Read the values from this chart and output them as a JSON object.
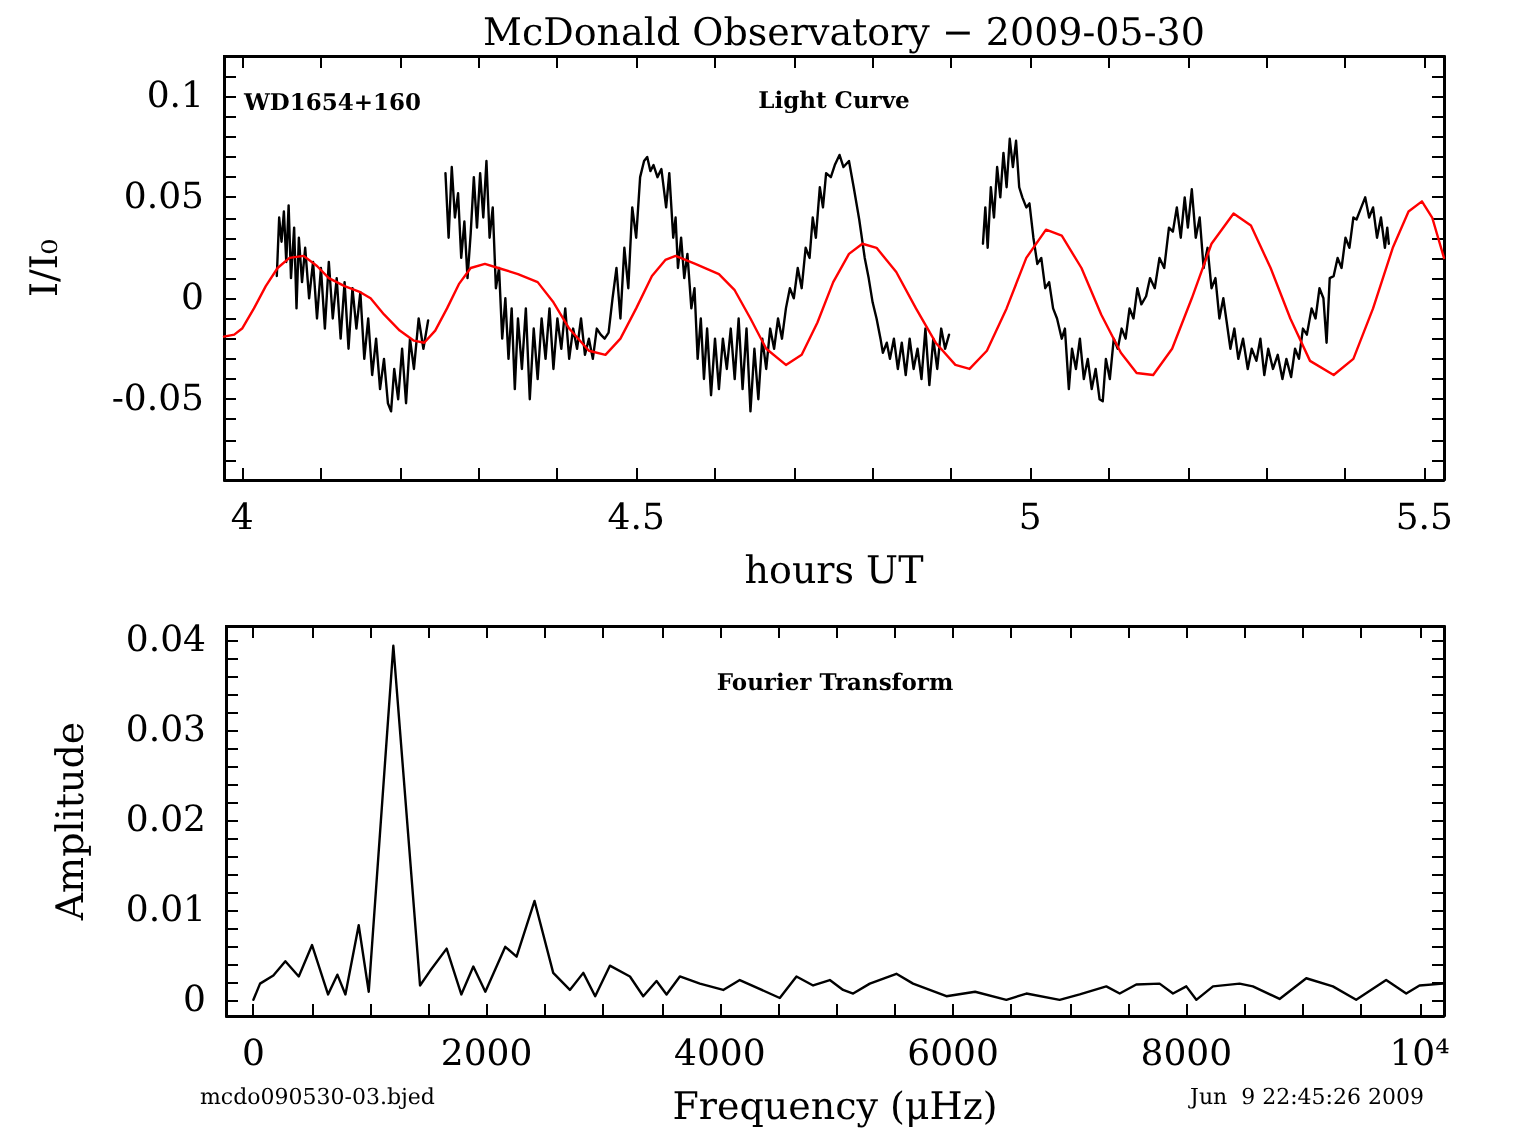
{
  "chart_data": [
    {
      "type": "line",
      "title": "McDonald Observatory − 2009-05-30",
      "xlabel": "hours UT",
      "ylabel": "I/I₀",
      "annotations": [
        "WD1654+160",
        "Light Curve"
      ],
      "marker": "none",
      "line_style": "solid",
      "xlim": [
        3.977,
        5.525
      ],
      "ylim": [
        -0.09,
        0.12
      ],
      "xticks": [
        4,
        {
          "value": 4.1,
          "label": null
        },
        {
          "value": 4.2,
          "label": null
        },
        {
          "value": 4.3,
          "label": null
        },
        {
          "value": 4.4,
          "label": null
        },
        4.5,
        {
          "value": 4.6,
          "label": null
        },
        {
          "value": 4.7,
          "label": null
        },
        {
          "value": 4.8,
          "label": null
        },
        {
          "value": 4.9,
          "label": null
        },
        5,
        {
          "value": 5.1,
          "label": null
        },
        {
          "value": 5.2,
          "label": null
        },
        {
          "value": 5.3,
          "label": null
        },
        {
          "value": 5.4,
          "label": null
        },
        5.5
      ],
      "yticks": [
        {
          "value": -0.08,
          "label": null
        },
        {
          "value": -0.07,
          "label": null
        },
        {
          "value": -0.06,
          "label": null
        },
        -0.05,
        {
          "value": -0.04,
          "label": null
        },
        {
          "value": -0.03,
          "label": null
        },
        {
          "value": -0.02,
          "label": null
        },
        {
          "value": -0.01,
          "label": null
        },
        0,
        {
          "value": 0.01,
          "label": null
        },
        {
          "value": 0.02,
          "label": null
        },
        {
          "value": 0.03,
          "label": null
        },
        {
          "value": 0.04,
          "label": null
        },
        0.05,
        {
          "value": 0.06,
          "label": null
        },
        {
          "value": 0.07,
          "label": null
        },
        {
          "value": 0.08,
          "label": null
        },
        {
          "value": 0.09,
          "label": null
        },
        0.1,
        {
          "value": 0.11,
          "label": null
        }
      ],
      "series": [
        {
          "color": "#000000",
          "x": [
            4.044,
            4.047,
            4.05,
            4.053,
            4.056,
            4.059,
            4.062,
            4.066,
            4.069,
            4.072,
            4.076,
            4.08,
            4.085,
            4.09,
            4.095,
            4.1,
            4.105,
            4.11,
            4.115,
            4.12,
            4.125,
            4.13,
            4.135,
            4.14,
            4.145,
            4.15,
            4.155,
            4.16,
            4.165,
            4.17,
            4.175,
            4.18,
            4.185,
            4.189,
            4.193,
            4.198,
            4.203,
            4.208,
            4.213,
            4.218,
            4.224,
            4.23,
            4.236,
            4.247,
            4.258,
            4.262,
            4.266,
            4.27,
            4.274,
            4.278,
            4.282,
            4.286,
            4.29,
            4.294,
            4.298,
            4.302,
            4.306,
            4.31,
            4.314,
            4.318,
            4.322,
            4.326,
            4.33,
            4.334,
            4.338,
            4.342,
            4.346,
            4.35,
            4.355,
            4.36,
            4.365,
            4.37,
            4.375,
            4.38,
            4.385,
            4.39,
            4.395,
            4.4,
            4.405,
            4.41,
            4.415,
            4.42,
            4.425,
            4.43,
            4.435,
            4.44,
            4.445,
            4.45,
            4.455,
            4.46,
            4.465,
            4.47,
            4.475,
            4.48,
            4.485,
            4.49,
            4.495,
            4.5,
            4.505,
            4.51,
            4.514,
            4.518,
            4.522,
            4.527,
            4.532,
            4.538,
            4.542,
            4.547,
            4.55,
            4.553,
            4.557,
            4.561,
            4.565,
            4.57,
            4.574,
            4.578,
            4.582,
            4.586,
            4.59,
            4.595,
            4.6,
            4.605,
            4.61,
            4.615,
            4.62,
            4.625,
            4.63,
            4.635,
            4.64,
            4.645,
            4.65,
            4.655,
            4.66,
            4.665,
            4.67,
            4.675,
            4.68,
            4.685,
            4.69,
            4.695,
            4.7,
            4.705,
            4.71,
            4.715,
            4.72,
            4.724,
            4.728,
            4.733,
            4.737,
            4.741,
            4.747,
            4.752,
            4.758,
            4.763,
            4.77,
            4.776,
            4.783,
            4.79,
            4.795,
            4.8,
            4.805,
            4.81,
            4.813,
            4.818,
            4.822,
            4.827,
            4.832,
            4.837,
            4.842,
            4.847,
            4.852,
            4.857,
            4.862,
            4.867,
            4.872,
            4.877,
            4.882,
            4.887,
            4.892,
            4.897,
            4.92,
            4.94,
            4.943,
            4.946,
            4.95,
            4.954,
            4.958,
            4.962,
            4.966,
            4.97,
            4.974,
            4.978,
            4.982,
            4.986,
            4.99,
            4.995,
            4.999,
            5.004,
            5.009,
            5.014,
            5.019,
            5.024,
            5.029,
            5.034,
            5.04,
            5.044,
            5.049,
            5.053,
            5.058,
            5.063,
            5.068,
            5.073,
            5.078,
            5.083,
            5.088,
            5.092,
            5.096,
            5.101,
            5.106,
            5.111,
            5.116,
            5.121,
            5.126,
            5.131,
            5.136,
            5.141,
            5.147,
            5.152,
            5.158,
            5.164,
            5.17,
            5.176,
            5.181,
            5.186,
            5.191,
            5.196,
            5.2,
            5.205,
            5.21,
            5.215,
            5.22,
            5.225,
            5.23,
            5.235,
            5.24,
            5.245,
            5.249,
            5.254,
            5.259,
            5.264,
            5.27,
            5.276,
            5.281,
            5.287,
            5.292,
            5.297,
            5.302,
            5.308,
            5.314,
            5.32,
            5.325,
            5.331,
            5.336,
            5.341,
            5.346,
            5.351,
            5.357,
            5.362,
            5.367,
            5.372,
            5.376,
            5.38,
            5.385,
            5.39,
            5.395,
            5.4,
            5.405,
            5.41,
            5.414,
            5.42,
            5.425,
            5.43,
            5.435,
            5.44,
            5.445,
            5.45,
            5.453,
            5.455
          ],
          "values": [
            0.011,
            0.04,
            0.028,
            0.043,
            0.018,
            0.046,
            0.01,
            0.035,
            -0.005,
            0.03,
            0.008,
            0.025,
            0,
            0.018,
            -0.01,
            0.015,
            -0.015,
            0.018,
            -0.01,
            0.01,
            -0.02,
            0.008,
            -0.025,
            0.005,
            -0.015,
            0.003,
            -0.03,
            -0.01,
            -0.038,
            -0.02,
            -0.045,
            -0.03,
            -0.052,
            -0.056,
            -0.035,
            -0.05,
            -0.025,
            -0.052,
            -0.02,
            -0.035,
            -0.01,
            -0.025,
            -0.011,
            null,
            0.062,
            0.03,
            0.065,
            0.04,
            0.052,
            0.02,
            0.038,
            0.01,
            0.032,
            0.06,
            0.035,
            0.062,
            0.04,
            0.068,
            0.03,
            0.045,
            0.005,
            0.015,
            -0.02,
            0,
            -0.03,
            -0.005,
            -0.045,
            -0.01,
            -0.035,
            -0.005,
            -0.05,
            -0.015,
            -0.04,
            -0.01,
            -0.03,
            -0.005,
            -0.035,
            -0.01,
            -0.025,
            -0.005,
            -0.03,
            -0.015,
            -0.025,
            -0.01,
            -0.028,
            -0.02,
            -0.03,
            -0.015,
            -0.018,
            -0.02,
            -0.017,
            0,
            0.015,
            -0.01,
            0.025,
            0.005,
            0.045,
            0.03,
            0.06,
            0.068,
            0.07,
            0.063,
            0.066,
            0.06,
            0.064,
            0.045,
            0.062,
            0.03,
            0.04,
            0.015,
            0.03,
            0.01,
            0.022,
            -0.005,
            0.005,
            -0.03,
            -0.01,
            -0.04,
            -0.015,
            -0.048,
            -0.02,
            -0.045,
            -0.02,
            -0.035,
            -0.015,
            -0.04,
            -0.01,
            -0.045,
            -0.015,
            -0.056,
            -0.025,
            -0.05,
            -0.02,
            -0.035,
            -0.015,
            -0.025,
            -0.01,
            -0.02,
            -0.005,
            0.005,
            0,
            0.015,
            0.005,
            0.025,
            0.02,
            0.04,
            0.03,
            0.055,
            0.045,
            0.062,
            0.06,
            0.066,
            0.071,
            0.065,
            0.068,
            0.055,
            0.039,
            0.02,
            0.01,
            -0.002,
            -0.01,
            -0.02,
            -0.027,
            -0.022,
            -0.03,
            -0.02,
            -0.035,
            -0.022,
            -0.038,
            -0.02,
            -0.035,
            -0.025,
            -0.04,
            -0.015,
            -0.043,
            -0.02,
            -0.035,
            -0.015,
            -0.025,
            -0.018,
            null,
            0.027,
            0.045,
            0.025,
            0.055,
            0.04,
            0.065,
            0.05,
            0.072,
            0.055,
            0.079,
            0.065,
            0.078,
            0.055,
            0.05,
            0.045,
            0.047,
            0.03,
            0.017,
            0.02,
            0.005,
            0.008,
            -0.005,
            -0.01,
            -0.02,
            -0.015,
            -0.045,
            -0.025,
            -0.035,
            -0.02,
            -0.04,
            -0.03,
            -0.045,
            -0.035,
            -0.05,
            -0.051,
            -0.03,
            -0.04,
            -0.02,
            -0.025,
            -0.015,
            -0.02,
            -0.005,
            -0.01,
            0.005,
            -0.003,
            0.001,
            0.01,
            0.005,
            0.02,
            0.015,
            0.035,
            0.033,
            0.045,
            0.03,
            0.05,
            0.035,
            0.054,
            0.03,
            0.04,
            0.015,
            0.025,
            0.005,
            0.01,
            -0.01,
            0,
            -0.011,
            -0.025,
            -0.015,
            -0.03,
            -0.02,
            -0.035,
            -0.025,
            -0.031,
            -0.02,
            -0.038,
            -0.025,
            -0.035,
            -0.028,
            -0.04,
            -0.03,
            -0.039,
            -0.025,
            -0.03,
            -0.015,
            -0.018,
            -0.005,
            -0.01,
            0.005,
            0,
            -0.022,
            0.01,
            0.011,
            0.02,
            0.015,
            0.03,
            0.025,
            0.04,
            0.039,
            0.045,
            0.05,
            0.04,
            0.045,
            0.03,
            0.04,
            0.025,
            0.035,
            0.027
          ]
        },
        {
          "color": "#ff0000",
          "x": [
            3.977,
            3.99,
            4,
            4.015,
            4.03,
            4.045,
            4.06,
            4.078,
            4.095,
            4.11,
            4.13,
            4.15,
            4.163,
            4.18,
            4.2,
            4.218,
            4.231,
            4.245,
            4.26,
            4.275,
            4.29,
            4.308,
            4.325,
            4.35,
            4.375,
            4.395,
            4.415,
            4.44,
            4.461,
            4.48,
            4.5,
            4.52,
            4.537,
            4.55,
            4.575,
            4.605,
            4.625,
            4.645,
            4.665,
            4.69,
            4.71,
            4.73,
            4.75,
            4.77,
            4.787,
            4.805,
            4.83,
            4.855,
            4.88,
            4.905,
            4.923,
            4.945,
            4.97,
            4.995,
            5.02,
            5.04,
            5.065,
            5.09,
            5.115,
            5.135,
            5.156,
            5.18,
            5.205,
            5.23,
            5.258,
            5.28,
            5.305,
            5.33,
            5.355,
            5.385,
            5.41,
            5.435,
            5.46,
            5.48,
            5.497,
            5.51,
            5.525
          ],
          "values": [
            -0.019,
            -0.018,
            -0.015,
            -0.005,
            0.006,
            0.015,
            0.02,
            0.021,
            0.016,
            0.01,
            0.006,
            0.003,
            0,
            -0.008,
            -0.016,
            -0.021,
            -0.022,
            -0.016,
            -0.005,
            0.007,
            0.015,
            0.017,
            0.015,
            0.012,
            0.008,
            -0.002,
            -0.015,
            -0.026,
            -0.028,
            -0.02,
            -0.005,
            0.011,
            0.019,
            0.021,
            0.017,
            0.012,
            0.004,
            -0.01,
            -0.025,
            -0.033,
            -0.028,
            -0.012,
            0.008,
            0.022,
            0.027,
            0.025,
            0.013,
            -0.005,
            -0.022,
            -0.033,
            -0.035,
            -0.026,
            -0.005,
            0.02,
            0.034,
            0.031,
            0.015,
            -0.008,
            -0.027,
            -0.037,
            -0.038,
            -0.025,
            0,
            0.027,
            0.042,
            0.036,
            0.015,
            -0.01,
            -0.031,
            -0.038,
            -0.03,
            -0.005,
            0.025,
            0.043,
            0.048,
            0.04,
            0.02
          ]
        }
      ]
    },
    {
      "type": "line",
      "xlabel": "Frequency (μHz)",
      "ylabel": "Amplitude",
      "annotations": [
        "Fourier Transform",
        "mcdo090530-03.bjed",
        "Jun  9 22:45:26 2009"
      ],
      "marker": "none",
      "line_style": "solid",
      "xlim": [
        -235,
        10210
      ],
      "ylim": [
        -0.0018,
        0.0416
      ],
      "xticks": [
        0,
        {
          "value": 500,
          "label": null
        },
        {
          "value": 1000,
          "label": null
        },
        {
          "value": 1500,
          "label": null
        },
        2000,
        {
          "value": 2500,
          "label": null
        },
        {
          "value": 3000,
          "label": null
        },
        {
          "value": 3500,
          "label": null
        },
        4000,
        {
          "value": 4500,
          "label": null
        },
        {
          "value": 5000,
          "label": null
        },
        {
          "value": 5500,
          "label": null
        },
        6000,
        {
          "value": 6500,
          "label": null
        },
        {
          "value": 7000,
          "label": null
        },
        {
          "value": 7500,
          "label": null
        },
        8000,
        {
          "value": 8500,
          "label": null
        },
        {
          "value": 9000,
          "label": null
        },
        {
          "value": 9500,
          "label": null
        },
        {
          "value": 10000,
          "label": "10⁴"
        }
      ],
      "yticks": [
        0,
        {
          "value": 0.002,
          "label": null
        },
        {
          "value": 0.004,
          "label": null
        },
        {
          "value": 0.006,
          "label": null
        },
        {
          "value": 0.008,
          "label": null
        },
        0.01,
        {
          "value": 0.012,
          "label": null
        },
        {
          "value": 0.014,
          "label": null
        },
        {
          "value": 0.016,
          "label": null
        },
        {
          "value": 0.018,
          "label": null
        },
        0.02,
        {
          "value": 0.022,
          "label": null
        },
        {
          "value": 0.024,
          "label": null
        },
        {
          "value": 0.026,
          "label": null
        },
        {
          "value": 0.028,
          "label": null
        },
        0.03,
        {
          "value": 0.032,
          "label": null
        },
        {
          "value": 0.034,
          "label": null
        },
        {
          "value": 0.036,
          "label": null
        },
        {
          "value": 0.038,
          "label": null
        },
        0.04
      ],
      "series": [
        {
          "color": "#000000",
          "x": [
            0,
            57,
            171,
            274,
            389,
            503,
            640,
            720,
            789,
            903,
            989,
            1200,
            1429,
            1514,
            1657,
            1783,
            1886,
            1989,
            2160,
            2257,
            2411,
            2571,
            2714,
            2829,
            2931,
            3057,
            3229,
            3343,
            3457,
            3543,
            3657,
            3829,
            4029,
            4171,
            4514,
            4657,
            4800,
            4943,
            5057,
            5143,
            5286,
            5514,
            5657,
            5943,
            6189,
            6457,
            6629,
            6914,
            7086,
            7314,
            7429,
            7571,
            7771,
            7886,
            8000,
            8086,
            8229,
            8457,
            8571,
            8800,
            9029,
            9257,
            9457,
            9714,
            9886,
            10000,
            10200
          ],
          "values": [
            0,
            0.0018,
            0.0027,
            0.0043,
            0.0026,
            0.0061,
            0.0006,
            0.0028,
            0.0006,
            0.0083,
            0.0009,
            0.0394,
            0.0016,
            0.0032,
            0.0057,
            0.0006,
            0.0037,
            0.0009,
            0.0059,
            0.0048,
            0.011,
            0.003,
            0.0011,
            0.003,
            0.0004,
            0.0038,
            0.0026,
            0.0004,
            0.0021,
            0.0006,
            0.0026,
            0.0018,
            0.0011,
            0.0022,
            0.0002,
            0.0026,
            0.0016,
            0.0022,
            0.0011,
            0.0007,
            0.0018,
            0.0029,
            0.0018,
            0.0004,
            0.0009,
            0,
            0.0007,
            0,
            0.0006,
            0.0015,
            0.0007,
            0.0017,
            0.0018,
            0.0007,
            0.0015,
            0,
            0.0015,
            0.0018,
            0.0015,
            0.0001,
            0.0024,
            0.0015,
            0,
            0.0022,
            0.0007,
            0.0016,
            0.0018
          ]
        }
      ]
    }
  ]
}
